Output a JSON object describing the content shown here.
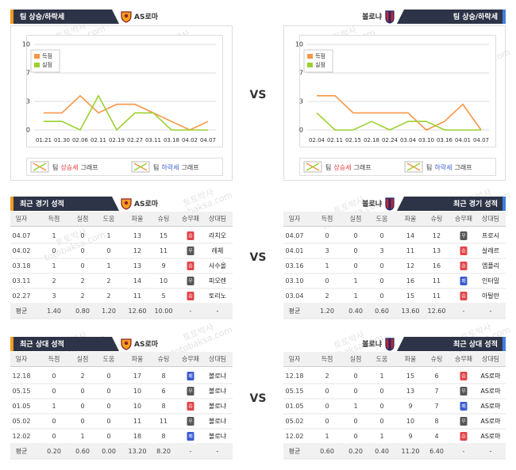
{
  "chart_data": [
    {
      "type": "line",
      "title": "팀 상승/하락세",
      "team": "AS로마",
      "categories": [
        "01.21",
        "01.30",
        "02.06",
        "02.11",
        "02.19",
        "02.27",
        "03.11",
        "03.18",
        "04.02",
        "04.07"
      ],
      "series": [
        {
          "name": "득점",
          "color": "#f79646",
          "values": [
            2,
            2,
            4,
            2,
            3,
            3,
            2,
            1,
            0,
            1
          ]
        },
        {
          "name": "실점",
          "color": "#9bd12f",
          "values": [
            1,
            1,
            0,
            4,
            0,
            2,
            2,
            0,
            0,
            0
          ]
        }
      ],
      "ylim": [
        0,
        10
      ],
      "yticks": [
        0,
        {
          "value": 3.33,
          "label": "3"
        },
        {
          "value": 6.67,
          "label": "7"
        },
        10
      ],
      "grid": true,
      "legend": "upper left"
    },
    {
      "type": "line",
      "title": "팀 상승/하락세",
      "team": "볼로냐",
      "categories": [
        "02.04",
        "02.11",
        "02.15",
        "02.18",
        "02.24",
        "03.04",
        "03.10",
        "03.16",
        "04.01",
        "04.07"
      ],
      "series": [
        {
          "name": "득점",
          "color": "#f79646",
          "values": [
            4,
            4,
            2,
            2,
            2,
            2,
            0,
            1,
            3,
            0
          ]
        },
        {
          "name": "실점",
          "color": "#9bd12f",
          "values": [
            2,
            0,
            0,
            1,
            0,
            1,
            1,
            0,
            0,
            0
          ]
        }
      ],
      "ylim": [
        0,
        10
      ],
      "yticks": [
        0,
        {
          "value": 3.33,
          "label": "3"
        },
        {
          "value": 6.67,
          "label": "7"
        },
        10
      ],
      "grid": true,
      "legend": "upper left"
    }
  ],
  "trend_legend": {
    "prefix": "팀",
    "rise": "상승세",
    "fall": "하락세",
    "suffix": "그래프",
    "rise_color": "#e8383d",
    "fall_color": "#3a5fcd"
  },
  "vs": "VS",
  "result_colors": [
    {
      "label": "승",
      "color": "#e0464b"
    },
    {
      "label": "무",
      "color": "#555555"
    },
    {
      "label": "패",
      "color": "#3b5bd0"
    }
  ],
  "tables": [
    {
      "title": "최근 경기 성적",
      "team": "AS로마",
      "columns": [
        "일자",
        "득점",
        "실점",
        "도움",
        "파울",
        "슈팅",
        "승무패",
        "상대팀"
      ],
      "rows": [
        [
          "04.07",
          "1",
          "0",
          "1",
          "13",
          "15",
          "승",
          "라치오"
        ],
        [
          "04.02",
          "0",
          "0",
          "0",
          "12",
          "11",
          "무",
          "레체"
        ],
        [
          "03.18",
          "1",
          "0",
          "1",
          "13",
          "9",
          "승",
          "사수올"
        ],
        [
          "03.11",
          "2",
          "2",
          "2",
          "14",
          "10",
          "무",
          "피오렌"
        ],
        [
          "02.27",
          "3",
          "2",
          "2",
          "11",
          "5",
          "승",
          "토리노"
        ],
        [
          "평균",
          "1.40",
          "0.80",
          "1.20",
          "12.60",
          "10.00",
          "-",
          "-"
        ]
      ]
    },
    {
      "title": "최근 경기 성적",
      "team": "볼로냐",
      "columns": [
        "일자",
        "득점",
        "실점",
        "도움",
        "파울",
        "슈팅",
        "승무패",
        "상대팀"
      ],
      "rows": [
        [
          "04.07",
          "0",
          "0",
          "0",
          "14",
          "12",
          "무",
          "프로시"
        ],
        [
          "04.01",
          "3",
          "0",
          "3",
          "11",
          "13",
          "승",
          "살레르"
        ],
        [
          "03.16",
          "1",
          "0",
          "0",
          "12",
          "16",
          "승",
          "엠폴리"
        ],
        [
          "03.10",
          "0",
          "1",
          "0",
          "16",
          "11",
          "패",
          "인터밀"
        ],
        [
          "03.04",
          "2",
          "1",
          "0",
          "15",
          "11",
          "승",
          "아탈란"
        ],
        [
          "평균",
          "1.20",
          "0.40",
          "0.60",
          "13.60",
          "12.60",
          "-",
          "-"
        ]
      ]
    },
    {
      "title": "최근 상대 성적",
      "team": "AS로마",
      "columns": [
        "일자",
        "득점",
        "실점",
        "도움",
        "파울",
        "슈팅",
        "승무패",
        "상대팀"
      ],
      "rows": [
        [
          "12.18",
          "0",
          "2",
          "0",
          "17",
          "8",
          "패",
          "볼로냐"
        ],
        [
          "05.15",
          "0",
          "0",
          "0",
          "10",
          "6",
          "무",
          "볼로냐"
        ],
        [
          "01.05",
          "1",
          "0",
          "0",
          "10",
          "8",
          "승",
          "볼로냐"
        ],
        [
          "05.02",
          "0",
          "0",
          "0",
          "11",
          "11",
          "무",
          "볼로냐"
        ],
        [
          "12.02",
          "0",
          "1",
          "0",
          "18",
          "8",
          "패",
          "볼로냐"
        ],
        [
          "평균",
          "0.20",
          "0.60",
          "0.00",
          "13.20",
          "8.20",
          "-",
          "-"
        ]
      ]
    },
    {
      "title": "최근 상대 성적",
      "team": "볼로냐",
      "columns": [
        "일자",
        "득점",
        "실점",
        "도움",
        "파울",
        "슈팅",
        "승무패",
        "상대팀"
      ],
      "rows": [
        [
          "12.18",
          "2",
          "0",
          "1",
          "15",
          "6",
          "승",
          "AS로마"
        ],
        [
          "05.15",
          "0",
          "0",
          "0",
          "13",
          "7",
          "무",
          "AS로마"
        ],
        [
          "01.05",
          "0",
          "1",
          "0",
          "9",
          "7",
          "패",
          "AS로마"
        ],
        [
          "05.02",
          "0",
          "0",
          "0",
          "10",
          "8",
          "무",
          "AS로마"
        ],
        [
          "12.02",
          "1",
          "0",
          "1",
          "9",
          "4",
          "승",
          "AS로마"
        ],
        [
          "평균",
          "0.60",
          "0.20",
          "0.40",
          "11.20",
          "6.40",
          "-",
          "-"
        ]
      ]
    }
  ],
  "watermark": [
    "토토박사",
    "totobaksa.com"
  ]
}
